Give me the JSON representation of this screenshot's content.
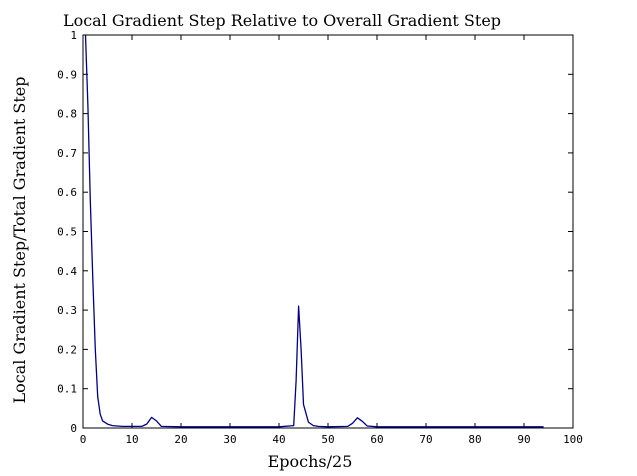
{
  "chart_data": {
    "type": "line",
    "title": "Local Gradient Step Relative to Overall Gradient Step",
    "xlabel": "Epochs/25",
    "ylabel": "Local Gradient Step/Total Gradient Step",
    "xlim": [
      0,
      100
    ],
    "ylim": [
      0,
      1
    ],
    "xticks": [
      "0",
      "10",
      "20",
      "30",
      "40",
      "50",
      "60",
      "70",
      "80",
      "90",
      "100"
    ],
    "yticks": [
      "0",
      "0.1",
      "0.2",
      "0.3",
      "0.4",
      "0.5",
      "0.6",
      "0.7",
      "0.8",
      "0.9",
      "1"
    ],
    "grid": false,
    "series_color": "#00008b",
    "series": [
      {
        "x": [
          0.5,
          1,
          1.5,
          2,
          2.5,
          3,
          3.5,
          4,
          5,
          6,
          8,
          10,
          12,
          13,
          14,
          15,
          16,
          20,
          30,
          40,
          43,
          43.5,
          44,
          44.5,
          45,
          46,
          47,
          48,
          50,
          54,
          55,
          56,
          57,
          58,
          60,
          70,
          80,
          90,
          94
        ],
        "y": [
          1.0,
          0.82,
          0.58,
          0.38,
          0.2,
          0.08,
          0.035,
          0.018,
          0.01,
          0.006,
          0.004,
          0.004,
          0.004,
          0.01,
          0.027,
          0.018,
          0.004,
          0.003,
          0.003,
          0.003,
          0.006,
          0.12,
          0.31,
          0.2,
          0.06,
          0.015,
          0.006,
          0.004,
          0.003,
          0.004,
          0.012,
          0.026,
          0.017,
          0.005,
          0.003,
          0.003,
          0.003,
          0.003,
          0.003
        ]
      }
    ]
  }
}
